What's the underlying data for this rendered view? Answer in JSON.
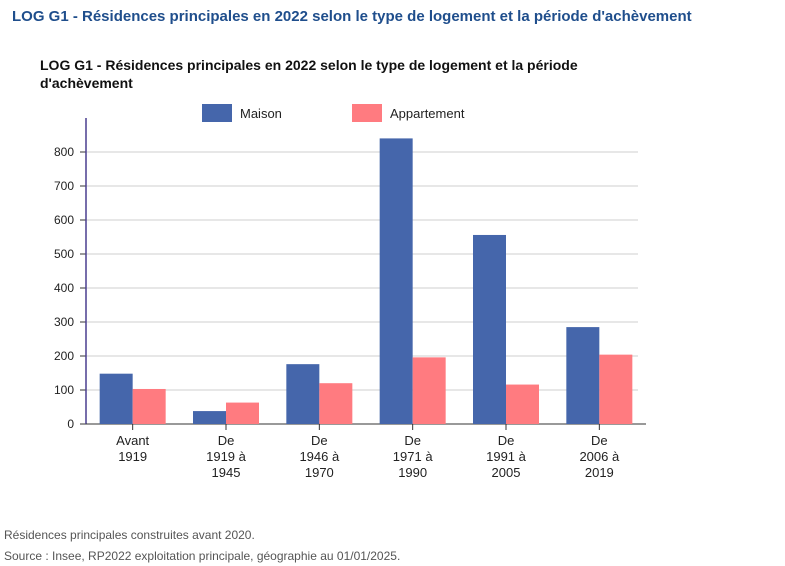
{
  "page": {
    "heading": "LOG G1 - Résidences principales en 2022 selon le type de logement et la période d'achèvement",
    "note": "Résidences principales construites avant 2020.",
    "source": "Source : Insee, RP2022 exploitation principale, géographie au 01/01/2025."
  },
  "chart_data": {
    "type": "bar",
    "title_lines": [
      "LOG G1 - Résidences principales en 2022 selon le type de logement et la période",
      "d'achèvement"
    ],
    "categories": [
      [
        "Avant",
        "1919"
      ],
      [
        "De",
        "1919 à",
        "1945"
      ],
      [
        "De",
        "1946 à",
        "1970"
      ],
      [
        "De",
        "1971 à",
        "1990"
      ],
      [
        "De",
        "1991 à",
        "2005"
      ],
      [
        "De",
        "2006 à",
        "2019"
      ]
    ],
    "series": [
      {
        "name": "Maison",
        "color": "#4566ab",
        "values": [
          148,
          38,
          176,
          840,
          556,
          285
        ]
      },
      {
        "name": "Appartement",
        "color": "#ff7b80",
        "values": [
          103,
          63,
          120,
          196,
          116,
          204
        ]
      }
    ],
    "ylim": [
      0,
      900
    ],
    "yticks": [
      0,
      100,
      200,
      300,
      400,
      500,
      600,
      700,
      800
    ],
    "grid": true,
    "legend_position": "top"
  }
}
